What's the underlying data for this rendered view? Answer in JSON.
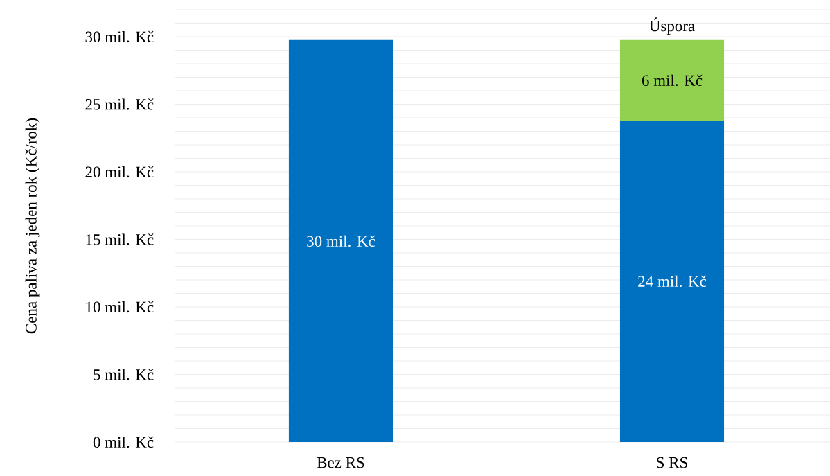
{
  "chart_data": {
    "type": "bar",
    "ylabel": "Cena paliva za jeden rok (Kč/rok)",
    "categories": [
      "Bez RS",
      "S RS"
    ],
    "stacked": true,
    "series": [
      {
        "color": "#0070c0",
        "values": [
          29.75,
          23.8
        ],
        "value_labels": [
          "30 mil. Kč",
          "24 mil. Kč"
        ]
      },
      {
        "name": "Úspora",
        "color": "#92d050",
        "values": [
          null,
          5.95
        ],
        "value_labels": [
          null,
          "6 mil. Kč"
        ]
      }
    ],
    "ylim": [
      0,
      32
    ],
    "yticks": [
      {
        "value": 0,
        "label": "0  mil. Kč"
      },
      {
        "value": 1,
        "label": null
      },
      {
        "value": 2,
        "label": null
      },
      {
        "value": 3,
        "label": null
      },
      {
        "value": 4,
        "label": null
      },
      {
        "value": 5,
        "label": "5  mil. Kč"
      },
      {
        "value": 6,
        "label": null
      },
      {
        "value": 7,
        "label": null
      },
      {
        "value": 8,
        "label": null
      },
      {
        "value": 9,
        "label": null
      },
      {
        "value": 10,
        "label": "10  mil. Kč"
      },
      {
        "value": 11,
        "label": null
      },
      {
        "value": 12,
        "label": null
      },
      {
        "value": 13,
        "label": null
      },
      {
        "value": 14,
        "label": null
      },
      {
        "value": 15,
        "label": "15  mil. Kč"
      },
      {
        "value": 16,
        "label": null
      },
      {
        "value": 17,
        "label": null
      },
      {
        "value": 18,
        "label": null
      },
      {
        "value": 19,
        "label": null
      },
      {
        "value": 20,
        "label": "20  mil. Kč"
      },
      {
        "value": 21,
        "label": null
      },
      {
        "value": 22,
        "label": null
      },
      {
        "value": 23,
        "label": null
      },
      {
        "value": 24,
        "label": null
      },
      {
        "value": 25,
        "label": "25  mil. Kč"
      },
      {
        "value": 26,
        "label": null
      },
      {
        "value": 27,
        "label": null
      },
      {
        "value": 28,
        "label": null
      },
      {
        "value": 29,
        "label": null
      },
      {
        "value": 30,
        "label": "30  mil. Kč"
      },
      {
        "value": 31,
        "label": null
      },
      {
        "value": 32,
        "label": null
      }
    ],
    "grid": "y"
  }
}
